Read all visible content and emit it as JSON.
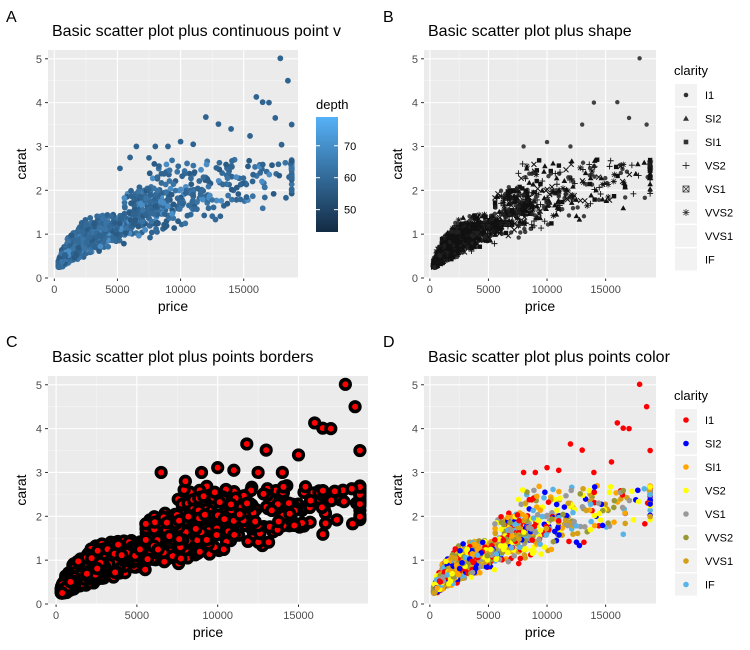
{
  "panels": [
    {
      "tag": "A",
      "title": "Basic scatter plot plus continuous point v"
    },
    {
      "tag": "B",
      "title": "Basic scatter plot plus shape"
    },
    {
      "tag": "C",
      "title": "Basic scatter plot plus points borders"
    },
    {
      "tag": "D",
      "title": "Basic scatter plot plus points color"
    }
  ],
  "chart_data": [
    {
      "type": "scatter",
      "title": "Basic scatter plot plus continuous point v",
      "xlabel": "price",
      "ylabel": "carat",
      "xlim": [
        -500,
        19300
      ],
      "ylim": [
        0,
        5.2
      ],
      "xticks": [
        0,
        5000,
        10000,
        15000
      ],
      "xtick_labels": [
        "0",
        "5000",
        "10000",
        "15000"
      ],
      "yticks": [
        0,
        1,
        2,
        3,
        4,
        5
      ],
      "ytick_labels": [
        "0",
        "1",
        "2",
        "3",
        "4",
        "5"
      ],
      "grid": true,
      "legend": {
        "title": "depth",
        "type": "colorbar",
        "range": [
          43,
          79
        ],
        "breaks": [
          50,
          60,
          70
        ],
        "labels": [
          "50",
          "60",
          "70"
        ],
        "low_color": "#132b43",
        "high_color": "#56b1f7"
      },
      "marker_color": "#336a98",
      "outliers": [
        [
          17900,
          5.01
        ],
        [
          18500,
          4.5
        ],
        [
          16000,
          4.13
        ],
        [
          16500,
          4.01
        ],
        [
          17000,
          4.0
        ],
        [
          17500,
          3.65
        ],
        [
          12000,
          3.67
        ],
        [
          13000,
          3.51
        ],
        [
          18800,
          3.5
        ],
        [
          14000,
          3.4
        ],
        [
          10000,
          3.11
        ],
        [
          11000,
          3.05
        ],
        [
          9000,
          3.0
        ],
        [
          8000,
          3.0
        ],
        [
          6500,
          3.0
        ],
        [
          15500,
          3.24
        ],
        [
          18000,
          3.04
        ],
        [
          7500,
          2.74
        ],
        [
          5200,
          2.5
        ],
        [
          6000,
          2.75
        ]
      ]
    },
    {
      "type": "scatter",
      "title": "Basic scatter plot plus shape",
      "xlabel": "price",
      "ylabel": "carat",
      "xlim": [
        -500,
        19300
      ],
      "ylim": [
        0,
        5.2
      ],
      "xticks": [
        0,
        5000,
        10000,
        15000
      ],
      "xtick_labels": [
        "0",
        "5000",
        "10000",
        "15000"
      ],
      "yticks": [
        0,
        1,
        2,
        3,
        4,
        5
      ],
      "ytick_labels": [
        "0",
        "1",
        "2",
        "3",
        "4",
        "5"
      ],
      "grid": true,
      "legend": {
        "title": "clarity",
        "type": "shape",
        "categories": [
          "I1",
          "SI2",
          "SI1",
          "VS2",
          "VS1",
          "VVS2",
          "VVS1",
          "IF"
        ],
        "shapes": [
          "circle-small",
          "triangle",
          "square",
          "plus",
          "boxed-x",
          "asterisk",
          "none",
          "none"
        ]
      },
      "marker_color": "#000000",
      "outliers": [
        [
          17900,
          5.01
        ],
        [
          18500,
          3.5
        ],
        [
          16000,
          4.01
        ],
        [
          14000,
          4.0
        ],
        [
          17000,
          3.65
        ],
        [
          13000,
          3.5
        ],
        [
          12000,
          3.0
        ],
        [
          10000,
          3.1
        ],
        [
          8000,
          3.0
        ]
      ]
    },
    {
      "type": "scatter",
      "title": "Basic scatter plot plus points borders",
      "xlabel": "price",
      "ylabel": "carat",
      "xlim": [
        -500,
        19300
      ],
      "ylim": [
        0,
        5.2
      ],
      "xticks": [
        0,
        5000,
        10000,
        15000
      ],
      "xtick_labels": [
        "0",
        "5000",
        "10000",
        "15000"
      ],
      "yticks": [
        0,
        1,
        2,
        3,
        4,
        5
      ],
      "ytick_labels": [
        "0",
        "1",
        "2",
        "3",
        "4",
        "5"
      ],
      "grid": true,
      "marker_fill": "#ff0000",
      "marker_border": "#000000",
      "outliers": [
        [
          17900,
          5.01
        ],
        [
          18500,
          4.5
        ],
        [
          16000,
          4.13
        ],
        [
          16500,
          4.01
        ],
        [
          17000,
          4.0
        ],
        [
          18800,
          3.5
        ],
        [
          11800,
          3.65
        ],
        [
          13000,
          3.51
        ],
        [
          10000,
          3.11
        ],
        [
          11000,
          3.05
        ],
        [
          12500,
          3.0
        ],
        [
          14000,
          3.0
        ],
        [
          9000,
          3.0
        ],
        [
          6500,
          3.0
        ],
        [
          8000,
          2.8
        ],
        [
          15000,
          3.4
        ]
      ]
    },
    {
      "type": "scatter",
      "title": "Basic scatter plot plus points color",
      "xlabel": "price",
      "ylabel": "carat",
      "xlim": [
        -500,
        19300
      ],
      "ylim": [
        0,
        5.2
      ],
      "xticks": [
        0,
        5000,
        10000,
        15000
      ],
      "xtick_labels": [
        "0",
        "5000",
        "10000",
        "15000"
      ],
      "yticks": [
        0,
        1,
        2,
        3,
        4,
        5
      ],
      "ytick_labels": [
        "0",
        "1",
        "2",
        "3",
        "4",
        "5"
      ],
      "grid": true,
      "legend": {
        "title": "clarity",
        "type": "color",
        "categories": [
          "I1",
          "SI2",
          "SI1",
          "VS2",
          "VS1",
          "VVS2",
          "VVS1",
          "IF"
        ],
        "colors": [
          "#ff0000",
          "#0000ff",
          "#ffa500",
          "#ffff00",
          "#999999",
          "#999933",
          "#d4a017",
          "#56b4e9"
        ]
      },
      "outliers": [
        [
          17900,
          5.01
        ],
        [
          18500,
          4.5
        ],
        [
          16000,
          4.13
        ],
        [
          16500,
          4.01
        ],
        [
          17000,
          4.0
        ],
        [
          18800,
          3.5
        ],
        [
          12000,
          3.65
        ],
        [
          13000,
          3.51
        ],
        [
          10000,
          3.11
        ],
        [
          11000,
          3.05
        ],
        [
          14000,
          3.0
        ],
        [
          9000,
          3.0
        ],
        [
          8000,
          3.0
        ],
        [
          15500,
          3.24
        ]
      ]
    }
  ]
}
